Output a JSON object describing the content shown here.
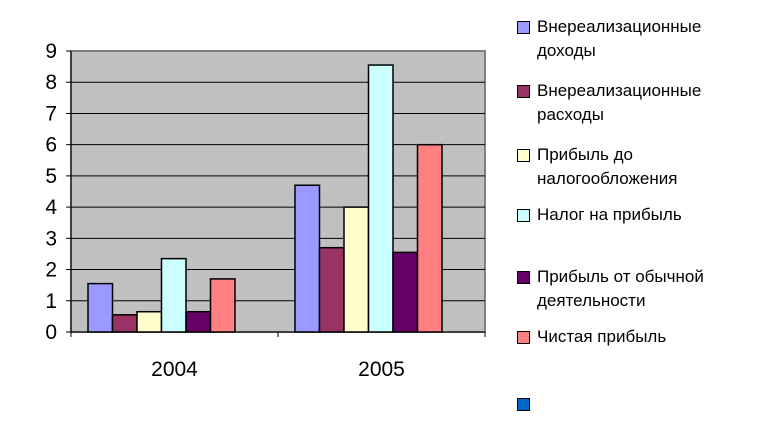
{
  "chart_data": {
    "type": "bar",
    "categories": [
      "2004",
      "2005"
    ],
    "ylim": [
      0,
      9
    ],
    "yticks": [
      "0",
      "1",
      "2",
      "3",
      "4",
      "5",
      "6",
      "7",
      "8",
      "9"
    ],
    "grid": true,
    "legend_position": "right",
    "plot_background": "#c0c0c0",
    "series": [
      {
        "name": "Внереализационные доходы",
        "line1": "Внереализационные",
        "line2": "доходы",
        "color": "#9999ff",
        "values": [
          1.55,
          4.7
        ]
      },
      {
        "name": "Внереализационные расходы",
        "line1": "Внереализационные",
        "line2": "расходы",
        "color": "#993366",
        "values": [
          0.55,
          2.7
        ]
      },
      {
        "name": "Прибыль до налогообложения",
        "line1": "Прибыль до",
        "line2": "налогообложения",
        "color": "#ffffcc",
        "values": [
          0.65,
          4.0
        ]
      },
      {
        "name": "Налог на прибыль",
        "line1": "Налог на прибыль",
        "line2": "",
        "color": "#ccffff",
        "values": [
          2.35,
          8.55
        ]
      },
      {
        "name": "Прибыль от обычной деятельности",
        "line1": "Прибыль от обычной",
        "line2": "деятельности",
        "color": "#660066",
        "values": [
          0.65,
          2.55
        ]
      },
      {
        "name": "Чистая прибыль",
        "line1": "Чистая прибыль",
        "line2": "",
        "color": "#ff8080",
        "values": [
          1.7,
          6.0
        ]
      }
    ],
    "extra_legend_entry": {
      "line1": "",
      "line2": "",
      "color": "#0066cc"
    }
  }
}
